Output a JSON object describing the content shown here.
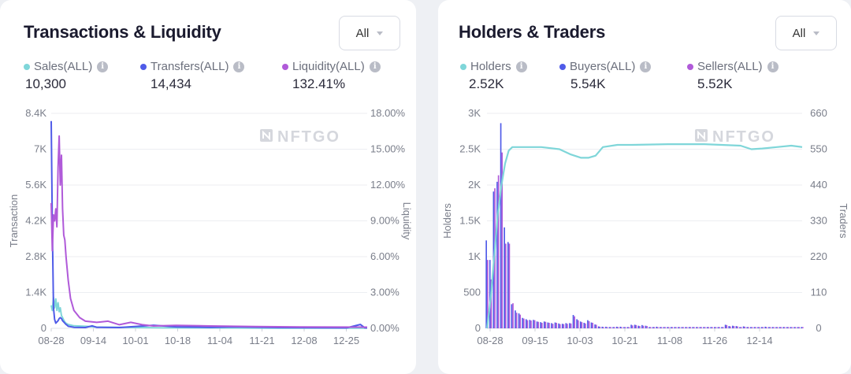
{
  "left": {
    "title": "Transactions & Liquidity",
    "filter": "All",
    "legend": [
      {
        "label": "Sales(ALL)",
        "value": "10,300",
        "color": "#7fd6d9"
      },
      {
        "label": "Transfers(ALL)",
        "value": "14,434",
        "color": "#4f5be8"
      },
      {
        "label": "Liquidity(ALL)",
        "value": "132.41%",
        "color": "#b05ad9"
      }
    ],
    "watermark": "NFTGO"
  },
  "right": {
    "title": "Holders & Traders",
    "filter": "All",
    "legend": [
      {
        "label": "Holders",
        "value": "2.52K",
        "color": "#7fd6d9"
      },
      {
        "label": "Buyers(ALL)",
        "value": "5.54K",
        "color": "#4f5be8"
      },
      {
        "label": "Sellers(ALL)",
        "value": "5.52K",
        "color": "#b05ad9"
      }
    ],
    "watermark": "NFTGO"
  },
  "chart_data": [
    {
      "type": "line",
      "x_tick_labels": [
        "08-28",
        "09-14",
        "10-01",
        "10-18",
        "11-04",
        "11-21",
        "12-08",
        "12-25"
      ],
      "ylabel": "Transaction",
      "ylabel_right": "Liquidity",
      "yticks_left": [
        "0",
        "1.4K",
        "2.8K",
        "4.2K",
        "5.6K",
        "7K",
        "8.4K"
      ],
      "yticks_right": [
        "0.00%",
        "3.00%",
        "6.00%",
        "9.00%",
        "12.00%",
        "15.00%",
        "18.00%"
      ],
      "ylim_left": [
        0,
        8400
      ],
      "ylim_right": [
        0,
        18
      ],
      "grid": true,
      "series": [
        {
          "name": "Sales(ALL)",
          "axis": "left",
          "color": "#7fd6d9",
          "points": [
            [
              0,
              900
            ],
            [
              1,
              700
            ],
            [
              2,
              1200
            ],
            [
              3,
              800
            ],
            [
              4,
              1150
            ],
            [
              5,
              700
            ],
            [
              6,
              1000
            ],
            [
              7,
              650
            ],
            [
              8,
              800
            ],
            [
              9,
              500
            ],
            [
              10,
              420
            ],
            [
              11,
              320
            ],
            [
              12,
              250
            ],
            [
              13,
              200
            ],
            [
              15,
              150
            ],
            [
              20,
              100
            ],
            [
              30,
              80
            ],
            [
              40,
              50
            ],
            [
              60,
              40
            ],
            [
              80,
              30
            ],
            [
              100,
              20
            ],
            [
              120,
              20
            ],
            [
              160,
              15
            ],
            [
              200,
              10
            ],
            [
              240,
              10
            ],
            [
              278,
              10
            ]
          ]
        },
        {
          "name": "Transfers(ALL)",
          "axis": "left",
          "color": "#4f5be8",
          "points": [
            [
              0,
              8100
            ],
            [
              1,
              4000
            ],
            [
              2,
              800
            ],
            [
              3,
              350
            ],
            [
              4,
              200
            ],
            [
              5,
              250
            ],
            [
              6,
              300
            ],
            [
              7,
              380
            ],
            [
              8,
              420
            ],
            [
              9,
              380
            ],
            [
              10,
              300
            ],
            [
              11,
              250
            ],
            [
              12,
              200
            ],
            [
              13,
              150
            ],
            [
              14,
              120
            ],
            [
              15,
              80
            ],
            [
              20,
              40
            ],
            [
              30,
              30
            ],
            [
              36,
              100
            ],
            [
              40,
              40
            ],
            [
              60,
              30
            ],
            [
              90,
              120
            ],
            [
              110,
              60
            ],
            [
              140,
              40
            ],
            [
              160,
              60
            ],
            [
              200,
              30
            ],
            [
              260,
              20
            ],
            [
              272,
              150
            ],
            [
              276,
              20
            ],
            [
              278,
              20
            ]
          ]
        },
        {
          "name": "Liquidity(ALL)",
          "axis": "right",
          "color": "#b05ad9",
          "points": [
            [
              0,
              10.5
            ],
            [
              1,
              6.5
            ],
            [
              2,
              9.5
            ],
            [
              3,
              9
            ],
            [
              4,
              10
            ],
            [
              5,
              8.5
            ],
            [
              6,
              13.5
            ],
            [
              7,
              16.1
            ],
            [
              8,
              12
            ],
            [
              9,
              14.5
            ],
            [
              10,
              10
            ],
            [
              11,
              7.8
            ],
            [
              12,
              7.4
            ],
            [
              13,
              6
            ],
            [
              15,
              4
            ],
            [
              17,
              2.5
            ],
            [
              20,
              1.5
            ],
            [
              25,
              0.9
            ],
            [
              30,
              0.6
            ],
            [
              40,
              0.5
            ],
            [
              50,
              0.6
            ],
            [
              60,
              0.3
            ],
            [
              70,
              0.5
            ],
            [
              80,
              0.3
            ],
            [
              90,
              0.2
            ],
            [
              110,
              0.25
            ],
            [
              140,
              0.2
            ],
            [
              180,
              0.15
            ],
            [
              220,
              0.12
            ],
            [
              278,
              0.1
            ]
          ]
        }
      ]
    },
    {
      "type": "bar",
      "x_tick_labels": [
        "08-28",
        "09-15",
        "10-03",
        "10-21",
        "11-08",
        "11-26",
        "12-14"
      ],
      "ylabel": "Holders",
      "ylabel_right": "Traders",
      "yticks_left": [
        "0",
        "500",
        "1K",
        "1.5K",
        "2K",
        "2.5K",
        "3K"
      ],
      "yticks_right": [
        "0",
        "110",
        "220",
        "330",
        "440",
        "550",
        "660"
      ],
      "ylim_left": [
        0,
        3000
      ],
      "ylim_right": [
        0,
        660
      ],
      "grid": true,
      "holders_line": {
        "name": "Holders",
        "axis": "left",
        "color": "#7fd6d9",
        "points": [
          [
            0,
            0
          ],
          [
            1,
            400
          ],
          [
            2,
            1000
          ],
          [
            3,
            1600
          ],
          [
            4,
            2000
          ],
          [
            5,
            2300
          ],
          [
            6,
            2480
          ],
          [
            7,
            2530
          ],
          [
            8,
            2530
          ],
          [
            15,
            2530
          ],
          [
            20,
            2500
          ],
          [
            23,
            2430
          ],
          [
            26,
            2380
          ],
          [
            28,
            2380
          ],
          [
            30,
            2410
          ],
          [
            32,
            2530
          ],
          [
            36,
            2560
          ],
          [
            40,
            2560
          ],
          [
            50,
            2570
          ],
          [
            60,
            2570
          ],
          [
            70,
            2550
          ],
          [
            73,
            2500
          ],
          [
            76,
            2510
          ],
          [
            80,
            2530
          ],
          [
            84,
            2550
          ],
          [
            87,
            2530
          ]
        ]
      },
      "bar_series": [
        {
          "name": "Buyers(ALL)",
          "axis": "right",
          "color": "#4f5be8",
          "values": [
            270,
            210,
            420,
            450,
            630,
            310,
            265,
            74,
            55,
            46,
            32,
            28,
            26,
            26,
            21,
            19,
            21,
            18,
            16,
            18,
            15,
            14,
            16,
            16,
            41,
            28,
            21,
            17,
            25,
            18,
            12,
            6,
            5,
            5,
            4,
            4,
            5,
            5,
            4,
            4,
            11,
            11,
            8,
            10,
            8,
            4,
            4,
            5,
            4,
            4,
            4,
            4,
            4,
            4,
            4,
            4,
            4,
            4,
            4,
            4,
            4,
            4,
            4,
            4,
            4,
            4,
            11,
            7,
            8,
            7,
            4,
            6,
            4,
            4,
            4,
            4,
            4,
            5,
            4,
            4,
            4,
            4,
            4,
            4,
            4,
            4,
            4,
            4
          ]
        },
        {
          "name": "Sellers(ALL)",
          "axis": "right",
          "color": "#b05ad9",
          "values": [
            210,
            150,
            430,
            470,
            540,
            260,
            260,
            77,
            48,
            42,
            30,
            25,
            24,
            25,
            20,
            17,
            20,
            17,
            14,
            17,
            13,
            13,
            14,
            15,
            37,
            25,
            19,
            15,
            22,
            17,
            11,
            5,
            4,
            4,
            4,
            4,
            4,
            4,
            4,
            4,
            9,
            10,
            7,
            8,
            7,
            4,
            4,
            4,
            4,
            4,
            4,
            4,
            4,
            4,
            4,
            4,
            4,
            4,
            4,
            4,
            4,
            4,
            4,
            4,
            4,
            4,
            10,
            6,
            7,
            6,
            4,
            5,
            4,
            4,
            4,
            4,
            4,
            4,
            4,
            4,
            4,
            4,
            4,
            4,
            4,
            4,
            4,
            4
          ]
        }
      ]
    }
  ]
}
